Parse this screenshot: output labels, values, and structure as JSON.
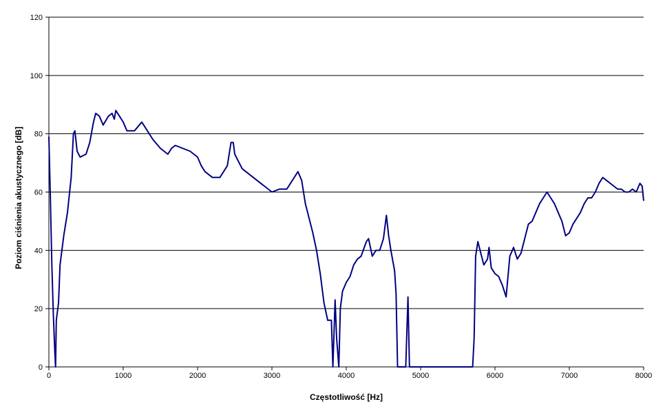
{
  "chart_data": {
    "type": "line",
    "x_label": "Częstotliwość [Hz]",
    "y_label": "Poziom ciśnienia akustycznego [dB]",
    "x": [
      0,
      20,
      40,
      60,
      80,
      90,
      100,
      130,
      150,
      200,
      250,
      300,
      330,
      350,
      380,
      420,
      500,
      550,
      600,
      630,
      680,
      730,
      800,
      850,
      880,
      900,
      950,
      1000,
      1050,
      1150,
      1250,
      1300,
      1400,
      1500,
      1600,
      1650,
      1700,
      1800,
      1900,
      1950,
      2000,
      2050,
      2100,
      2150,
      2200,
      2300,
      2400,
      2450,
      2480,
      2500,
      2600,
      2700,
      2800,
      2900,
      3000,
      3100,
      3200,
      3300,
      3350,
      3400,
      3450,
      3500,
      3550,
      3600,
      3650,
      3700,
      3750,
      3800,
      3820,
      3850,
      3870,
      3900,
      3920,
      3950,
      4000,
      4050,
      4100,
      4150,
      4200,
      4270,
      4300,
      4350,
      4400,
      4450,
      4500,
      4540,
      4570,
      4600,
      4650,
      4670,
      4690,
      4800,
      4830,
      4850,
      5000,
      5700,
      5720,
      5740,
      5770,
      5800,
      5850,
      5900,
      5920,
      5950,
      6000,
      6050,
      6100,
      6150,
      6200,
      6250,
      6300,
      6350,
      6400,
      6450,
      6500,
      6550,
      6600,
      6650,
      6700,
      6750,
      6800,
      6850,
      6900,
      6950,
      7000,
      7050,
      7100,
      7150,
      7200,
      7250,
      7300,
      7350,
      7400,
      7450,
      7500,
      7550,
      7600,
      7650,
      7700,
      7750,
      7800,
      7850,
      7900,
      7950,
      7980,
      8000
    ],
    "series": [
      {
        "color": "#000080",
        "values": [
          79,
          58,
          35,
          18,
          5,
          0,
          16,
          22,
          35,
          45,
          53,
          65,
          80,
          81,
          74,
          72,
          73,
          77,
          84,
          87,
          86,
          83,
          86,
          87,
          85,
          88,
          86,
          84,
          81,
          81,
          84,
          82,
          78,
          75,
          73,
          75,
          76,
          75,
          74,
          73,
          72,
          69,
          67,
          66,
          65,
          65,
          69,
          77,
          77,
          73,
          68,
          66,
          64,
          62,
          60,
          61,
          61,
          65,
          67,
          64,
          56,
          51,
          46,
          40,
          32,
          22,
          16,
          16,
          0,
          23,
          10,
          0,
          20,
          26,
          29,
          31,
          35,
          37,
          38,
          43,
          44,
          38,
          40,
          40,
          44,
          52,
          45,
          40,
          33,
          25,
          0,
          0,
          24,
          0,
          0,
          0,
          10,
          38,
          43,
          40,
          35,
          37,
          41,
          34,
          32,
          31,
          28,
          24,
          38,
          41,
          37,
          39,
          44,
          49,
          50,
          53,
          56,
          58,
          60,
          58,
          56,
          53,
          50,
          45,
          46,
          49,
          51,
          53,
          56,
          58,
          58,
          60,
          63,
          65,
          64,
          63,
          62,
          61,
          61,
          60,
          60,
          61,
          60,
          63,
          62,
          57
        ]
      }
    ],
    "xlim": [
      0,
      8000
    ],
    "xticks": [
      0,
      1000,
      2000,
      3000,
      4000,
      5000,
      6000,
      7000,
      8000
    ],
    "ylim": [
      0,
      120
    ],
    "yticks": [
      0,
      20,
      40,
      60,
      80,
      100,
      120
    ],
    "grid": true
  }
}
